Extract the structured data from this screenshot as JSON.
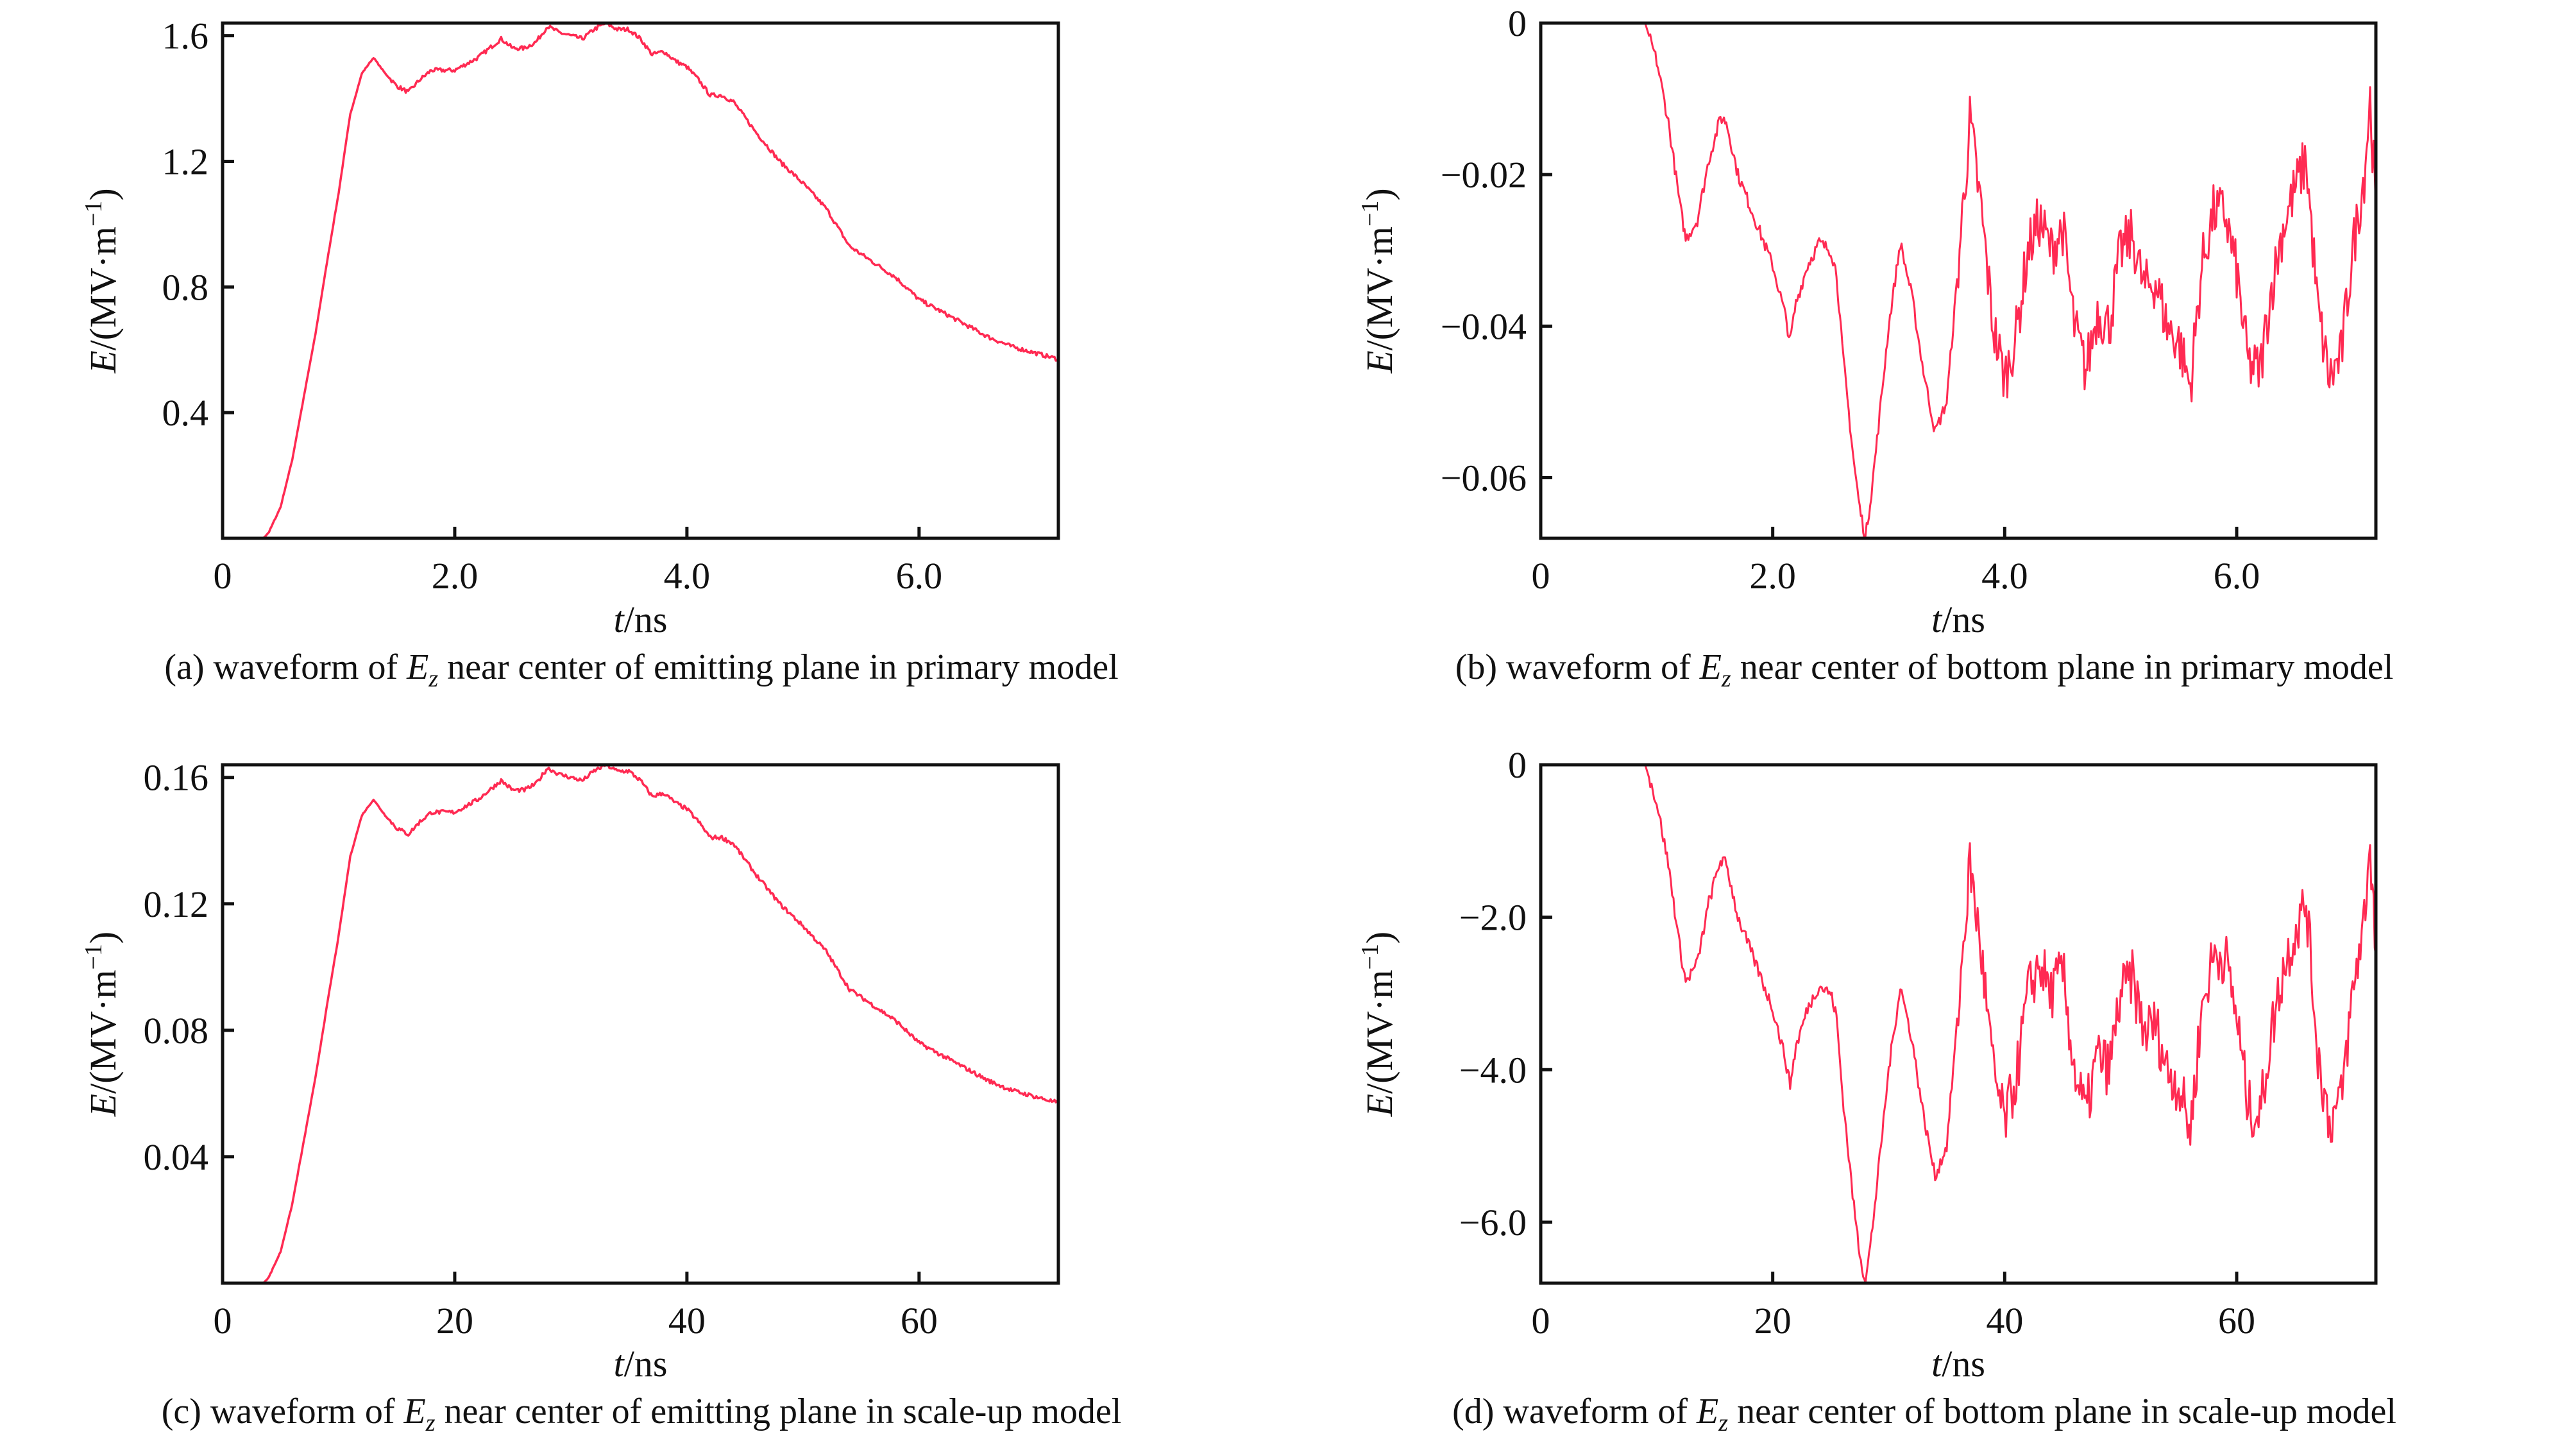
{
  "color": "#ff2a52",
  "chart_data": [
    {
      "panel": "a",
      "type": "line",
      "caption": {
        "prefix": "(a) waveform of ",
        "var": "E",
        "sub": "z",
        "suffix": " near center of emitting plane in primary model"
      },
      "xlabel": {
        "var": "t",
        "unit": "/ns"
      },
      "ylabel": {
        "var": "E",
        "unit": "/(MV·m",
        "exp": "−1",
        "close": ")"
      },
      "xlim": [
        0,
        7.2
      ],
      "ylim": [
        0,
        1.64
      ],
      "xticks": [
        {
          "v": 0,
          "label": "0"
        },
        {
          "v": 2,
          "label": "2.0"
        },
        {
          "v": 4,
          "label": "4.0"
        },
        {
          "v": 6,
          "label": "6.0"
        }
      ],
      "yticks": [
        {
          "v": 0.4,
          "label": "0.4"
        },
        {
          "v": 0.8,
          "label": "0.8"
        },
        {
          "v": 1.2,
          "label": "1.2"
        },
        {
          "v": 1.6,
          "label": "1.6"
        }
      ],
      "series": [
        {
          "x": [
            0,
            0.35,
            0.4,
            0.5,
            0.6,
            0.7,
            0.8,
            0.9,
            1.0,
            1.1,
            1.2,
            1.3,
            1.4,
            1.5,
            1.6,
            1.7,
            1.8,
            2.0,
            2.2,
            2.3,
            2.4,
            2.5,
            2.6,
            2.7,
            2.8,
            2.9,
            3.0,
            3.1,
            3.2,
            3.3,
            3.4,
            3.5,
            3.6,
            3.7,
            3.8,
            3.9,
            4.0,
            4.1,
            4.2,
            4.3,
            4.4,
            4.5,
            4.6,
            4.8,
            5.0,
            5.2,
            5.4,
            5.6,
            5.8,
            6.0,
            6.2,
            6.4,
            6.6,
            6.8,
            7.0,
            7.2
          ],
          "y": [
            0,
            0,
            0.02,
            0.1,
            0.25,
            0.45,
            0.65,
            0.88,
            1.1,
            1.35,
            1.48,
            1.53,
            1.48,
            1.44,
            1.42,
            1.46,
            1.49,
            1.49,
            1.53,
            1.56,
            1.59,
            1.56,
            1.56,
            1.58,
            1.63,
            1.61,
            1.6,
            1.59,
            1.62,
            1.64,
            1.62,
            1.62,
            1.59,
            1.54,
            1.55,
            1.52,
            1.5,
            1.46,
            1.41,
            1.41,
            1.39,
            1.34,
            1.29,
            1.2,
            1.13,
            1.05,
            0.93,
            0.88,
            0.83,
            0.76,
            0.72,
            0.68,
            0.64,
            0.61,
            0.59,
            0.57
          ]
        }
      ]
    },
    {
      "panel": "b",
      "type": "line",
      "caption": {
        "prefix": "(b) waveform of ",
        "var": "E",
        "sub": "z",
        "suffix": " near center of bottom plane in primary model"
      },
      "xlabel": {
        "var": "t",
        "unit": "/ns"
      },
      "ylabel": {
        "var": "E",
        "unit": "/(MV·m",
        "exp": "−1",
        "close": ")"
      },
      "xlim": [
        0,
        7.2
      ],
      "ylim": [
        -0.068,
        0
      ],
      "xticks": [
        {
          "v": 0,
          "label": "0"
        },
        {
          "v": 2,
          "label": "2.0"
        },
        {
          "v": 4,
          "label": "4.0"
        },
        {
          "v": 6,
          "label": "6.0"
        }
      ],
      "yticks": [
        {
          "v": 0,
          "label": "0"
        },
        {
          "v": -0.02,
          "label": "−0.02"
        },
        {
          "v": -0.04,
          "label": "−0.04"
        },
        {
          "v": -0.06,
          "label": "−0.06"
        }
      ],
      "series": [
        {
          "x": [
            0,
            0.9,
            1.0,
            1.1,
            1.2,
            1.25,
            1.35,
            1.45,
            1.55,
            1.6,
            1.7,
            1.8,
            1.9,
            2.0,
            2.1,
            2.15,
            2.2,
            2.3,
            2.4,
            2.5,
            2.55,
            2.6,
            2.7,
            2.75,
            2.8,
            2.85,
            2.9,
            3.0,
            3.1,
            3.2,
            3.3,
            3.4,
            3.5,
            3.6,
            3.7,
            3.8,
            3.9,
            4.0,
            4.1,
            4.2,
            4.3,
            4.4,
            4.5,
            4.6,
            4.7,
            4.8,
            4.9,
            5.0,
            5.1,
            5.2,
            5.3,
            5.4,
            5.5,
            5.6,
            5.7,
            5.8,
            5.9,
            6.0,
            6.1,
            6.2,
            6.3,
            6.4,
            6.5,
            6.6,
            6.7,
            6.8,
            6.9,
            7.0,
            7.1,
            7.15,
            7.2
          ],
          "y": [
            0,
            0,
            -0.005,
            -0.013,
            -0.024,
            -0.0285,
            -0.026,
            -0.018,
            -0.0125,
            -0.013,
            -0.02,
            -0.024,
            -0.028,
            -0.032,
            -0.038,
            -0.042,
            -0.037,
            -0.032,
            -0.029,
            -0.03,
            -0.033,
            -0.043,
            -0.058,
            -0.064,
            -0.068,
            -0.062,
            -0.055,
            -0.04,
            -0.029,
            -0.036,
            -0.046,
            -0.054,
            -0.05,
            -0.032,
            -0.013,
            -0.025,
            -0.04,
            -0.047,
            -0.041,
            -0.03,
            -0.026,
            -0.03,
            -0.027,
            -0.04,
            -0.046,
            -0.038,
            -0.04,
            -0.03,
            -0.028,
            -0.035,
            -0.034,
            -0.04,
            -0.042,
            -0.048,
            -0.032,
            -0.025,
            -0.025,
            -0.033,
            -0.045,
            -0.046,
            -0.035,
            -0.027,
            -0.022,
            -0.018,
            -0.038,
            -0.047,
            -0.044,
            -0.03,
            -0.02,
            -0.01,
            -0.025
          ]
        }
      ]
    },
    {
      "panel": "c",
      "type": "line",
      "caption": {
        "prefix": "(c) waveform of ",
        "var": "E",
        "sub": "z",
        "suffix": " near center of emitting plane in scale-up model"
      },
      "xlabel": {
        "var": "t",
        "unit": "/ns"
      },
      "ylabel": {
        "var": "E",
        "unit": "/(MV·m",
        "exp": "−1",
        "close": ")"
      },
      "xlim": [
        0,
        72
      ],
      "ylim": [
        0,
        0.164
      ],
      "xticks": [
        {
          "v": 0,
          "label": "0"
        },
        {
          "v": 20,
          "label": "20"
        },
        {
          "v": 40,
          "label": "40"
        },
        {
          "v": 60,
          "label": "60"
        }
      ],
      "yticks": [
        {
          "v": 0.04,
          "label": "0.04"
        },
        {
          "v": 0.08,
          "label": "0.08"
        },
        {
          "v": 0.12,
          "label": "0.12"
        },
        {
          "v": 0.16,
          "label": "0.16"
        }
      ],
      "series": [
        {
          "x": [
            0,
            3.5,
            4,
            5,
            6,
            7,
            8,
            9,
            10,
            11,
            12,
            13,
            14,
            15,
            16,
            17,
            18,
            20,
            22,
            23,
            24,
            25,
            26,
            27,
            28,
            29,
            30,
            31,
            32,
            33,
            34,
            35,
            36,
            37,
            38,
            39,
            40,
            41,
            42,
            43,
            44,
            45,
            46,
            48,
            50,
            52,
            54,
            56,
            58,
            60,
            62,
            64,
            66,
            68,
            70,
            72
          ],
          "y": [
            0,
            0,
            0.002,
            0.01,
            0.025,
            0.045,
            0.065,
            0.088,
            0.11,
            0.135,
            0.148,
            0.153,
            0.148,
            0.144,
            0.142,
            0.146,
            0.149,
            0.149,
            0.153,
            0.156,
            0.159,
            0.156,
            0.156,
            0.158,
            0.163,
            0.161,
            0.16,
            0.159,
            0.162,
            0.164,
            0.162,
            0.162,
            0.159,
            0.154,
            0.155,
            0.152,
            0.15,
            0.146,
            0.141,
            0.141,
            0.139,
            0.134,
            0.129,
            0.12,
            0.113,
            0.105,
            0.093,
            0.088,
            0.083,
            0.076,
            0.072,
            0.068,
            0.064,
            0.061,
            0.059,
            0.057
          ]
        }
      ]
    },
    {
      "panel": "d",
      "type": "line",
      "caption": {
        "prefix": "(d) waveform of ",
        "var": "E",
        "sub": "z",
        "suffix": " near center of bottom plane in scale-up model"
      },
      "xlabel": {
        "var": "t",
        "unit": "/ns"
      },
      "ylabel": {
        "var": "E",
        "unit": "/(MV·m",
        "exp": "−1",
        "close": ")"
      },
      "xlim": [
        0,
        72
      ],
      "ylim": [
        -6.8,
        0
      ],
      "xticks": [
        {
          "v": 0,
          "label": "0"
        },
        {
          "v": 20,
          "label": "20"
        },
        {
          "v": 40,
          "label": "40"
        },
        {
          "v": 60,
          "label": "60"
        }
      ],
      "yticks": [
        {
          "v": 0,
          "label": "0"
        },
        {
          "v": -2,
          "label": "−2.0"
        },
        {
          "v": -4,
          "label": "−4.0"
        },
        {
          "v": -6,
          "label": "−6.0"
        }
      ],
      "series": [
        {
          "x": [
            0,
            9,
            10,
            11,
            12,
            12.5,
            13.5,
            14.5,
            15.5,
            16,
            17,
            18,
            19,
            20,
            21,
            21.5,
            22,
            23,
            24,
            25,
            25.5,
            26,
            27,
            27.5,
            28,
            28.5,
            29,
            30,
            31,
            32,
            33,
            34,
            35,
            36,
            37,
            38,
            39,
            40,
            41,
            42,
            43,
            44,
            45,
            46,
            47,
            48,
            49,
            50,
            51,
            52,
            53,
            54,
            55,
            56,
            57,
            58,
            59,
            60,
            61,
            62,
            63,
            64,
            65,
            66,
            67,
            68,
            69,
            70,
            71,
            71.5,
            72
          ],
          "y": [
            0,
            0,
            -0.5,
            -1.3,
            -2.4,
            -2.85,
            -2.6,
            -1.8,
            -1.25,
            -1.3,
            -2.0,
            -2.4,
            -2.8,
            -3.2,
            -3.8,
            -4.2,
            -3.7,
            -3.2,
            -2.9,
            -3.0,
            -3.3,
            -4.3,
            -5.8,
            -6.4,
            -6.8,
            -6.2,
            -5.5,
            -4.0,
            -2.9,
            -3.6,
            -4.6,
            -5.4,
            -5.0,
            -3.2,
            -1.3,
            -2.5,
            -4.0,
            -4.7,
            -4.1,
            -3.0,
            -2.6,
            -3.0,
            -2.7,
            -4.0,
            -4.6,
            -3.8,
            -4.0,
            -3.0,
            -2.8,
            -3.5,
            -3.4,
            -4.0,
            -4.2,
            -4.8,
            -3.2,
            -2.5,
            -2.5,
            -3.3,
            -4.5,
            -4.6,
            -3.5,
            -2.7,
            -2.2,
            -1.8,
            -3.8,
            -4.7,
            -4.4,
            -3.0,
            -2.0,
            -1.0,
            -2.5
          ]
        }
      ]
    }
  ]
}
